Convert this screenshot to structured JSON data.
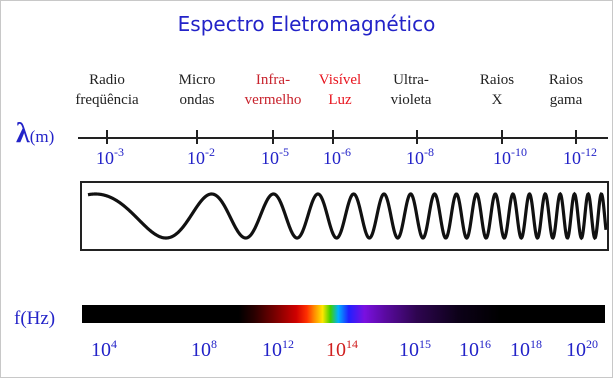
{
  "title": "Espectro Eletromagnético",
  "regions": [
    {
      "line1": "Radio",
      "line2": "freqüência",
      "color": "dark"
    },
    {
      "line1": "Micro",
      "line2": "ondas",
      "color": "dark"
    },
    {
      "line1": "Infra-",
      "line2": "vermelho",
      "color": "red"
    },
    {
      "line1": "Visível",
      "line2": "Luz",
      "color": "bright"
    },
    {
      "line1": "Ultra-",
      "line2": "violeta",
      "color": "dark"
    },
    {
      "line1": "Raios",
      "line2": "X",
      "color": "dark"
    },
    {
      "line1": "Raios",
      "line2": "gama",
      "color": "dark"
    }
  ],
  "wavelength_axis": {
    "symbol": "λ",
    "unit": "(m)",
    "labels": [
      {
        "base": "10",
        "exp": "-3"
      },
      {
        "base": "10",
        "exp": "-2"
      },
      {
        "base": "10",
        "exp": "-5"
      },
      {
        "base": "10",
        "exp": "-6"
      },
      {
        "base": "10",
        "exp": "-8"
      },
      {
        "base": "10",
        "exp": "-10"
      },
      {
        "base": "10",
        "exp": "-12"
      }
    ]
  },
  "frequency_axis": {
    "label": "f(Hz)",
    "labels": [
      {
        "base": "10",
        "exp": "4",
        "color": "blue"
      },
      {
        "base": "10",
        "exp": "8",
        "color": "blue"
      },
      {
        "base": "10",
        "exp": "12",
        "color": "blue"
      },
      {
        "base": "10",
        "exp": "14",
        "color": "red"
      },
      {
        "base": "10",
        "exp": "15",
        "color": "blue"
      },
      {
        "base": "10",
        "exp": "16",
        "color": "blue"
      },
      {
        "base": "10",
        "exp": "18",
        "color": "blue"
      },
      {
        "base": "10",
        "exp": "20",
        "color": "blue"
      }
    ]
  },
  "colors": {
    "label_blue": "#2323c8",
    "infrared_red": "#c8232d",
    "visible_red": "#e8141e"
  }
}
